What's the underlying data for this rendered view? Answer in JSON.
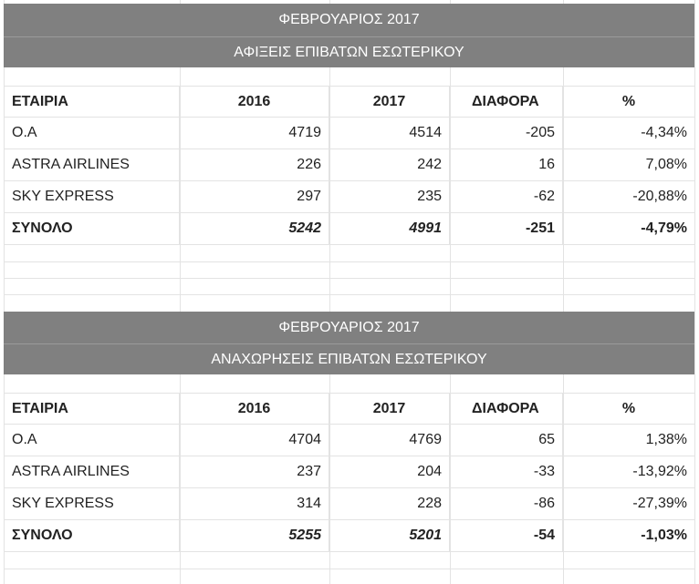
{
  "tables": [
    {
      "month": "ΦΕΒΡΟΥΑΡΙΟΣ 2017",
      "subtitle": "ΑΦΙΞΕΙΣ ΕΠΙΒΑΤΩΝ ΕΣΩΤΕΡΙΚΟΥ",
      "headers": [
        "ΕΤΑΙΡΙΑ",
        "2016",
        "2017",
        "ΔΙΑΦΟΡΑ",
        "%"
      ],
      "rows": [
        [
          "Ο.Α",
          "4719",
          "4514",
          "-205",
          "-4,34%"
        ],
        [
          "ASTRA AIRLINES",
          "226",
          "242",
          "16",
          "7,08%"
        ],
        [
          "SKY EXPRESS",
          "297",
          "235",
          "-62",
          "-20,88%"
        ]
      ],
      "total": [
        "ΣΥΝΟΛΟ",
        "5242",
        "4991",
        "-251",
        "-4,79%"
      ]
    },
    {
      "month": "ΦΕΒΡΟΥΑΡΙΟΣ 2017",
      "subtitle": "ΑΝΑΧΩΡΗΣΕΙΣ ΕΠΙΒΑΤΩΝ ΕΣΩΤΕΡΙΚΟΥ",
      "headers": [
        "ΕΤΑΙΡΙΑ",
        "2016",
        "2017",
        "ΔΙΑΦΟΡΑ",
        "%"
      ],
      "rows": [
        [
          "Ο.Α",
          "4704",
          "4769",
          "65",
          "1,38%"
        ],
        [
          "ASTRA AIRLINES",
          "237",
          "204",
          "-33",
          "-13,92%"
        ],
        [
          "SKY EXPRESS",
          "314",
          "228",
          "-86",
          "-27,39%"
        ]
      ],
      "total": [
        "ΣΥΝΟΛΟ",
        "5255",
        "5201",
        "-54",
        "-1,03%"
      ]
    }
  ]
}
